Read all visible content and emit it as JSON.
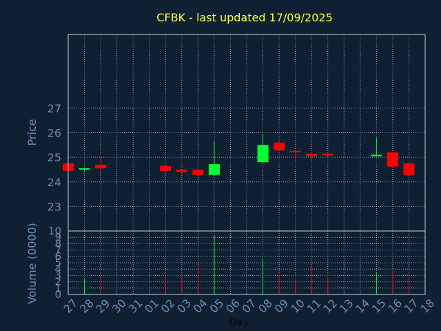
{
  "colors": {
    "background": "#0f2033",
    "plot_border": "#c9d1da",
    "grid": "#c9d1da",
    "title": "#ffff33",
    "tick_label": "#6b8fb3",
    "price_label": "#6b8fb3",
    "day_label": "#0a0a0a",
    "up": "#00ff33",
    "down": "#ff0000"
  },
  "chart_data": {
    "type": "candlestick",
    "title": "CFBK - last updated 17/09/2025",
    "xlabel": "Day",
    "price_panel": {
      "ylabel": "Price",
      "ylim": [
        22.0,
        30.0
      ],
      "yticks": [
        23,
        24,
        25,
        26,
        27
      ]
    },
    "volume_panel": {
      "ylabel": "Volume (0000)",
      "ylim": [
        0,
        10
      ],
      "yticks": [
        0,
        1,
        2,
        3,
        4,
        5,
        6,
        7,
        8,
        9,
        10
      ],
      "ytick_labels": [
        "0",
        "1",
        "2",
        "3",
        "4",
        "5",
        "6",
        "7",
        "8",
        "9",
        "10"
      ]
    },
    "x_tick_labels": [
      "27",
      "28",
      "29",
      "30",
      "31",
      "01",
      "02",
      "03",
      "04",
      "05",
      "06",
      "07",
      "08",
      "09",
      "10",
      "11",
      "12",
      "13",
      "14",
      "15",
      "16",
      "17",
      "18"
    ],
    "candles": [
      {
        "day": "27",
        "open": 24.75,
        "high": 24.75,
        "low": 24.45,
        "close": 24.45,
        "volume": 1.5
      },
      {
        "day": "28",
        "open": 24.5,
        "high": 24.55,
        "low": 24.45,
        "close": 24.55,
        "volume": 2.4
      },
      {
        "day": "29",
        "open": 24.7,
        "high": 25.05,
        "low": 24.35,
        "close": 24.55,
        "volume": 3.0
      },
      {
        "day": "02",
        "open": 24.65,
        "high": 24.7,
        "low": 24.4,
        "close": 24.45,
        "volume": 3.2
      },
      {
        "day": "03",
        "open": 24.5,
        "high": 24.5,
        "low": 24.35,
        "close": 24.4,
        "volume": 2.6
      },
      {
        "day": "04",
        "open": 24.5,
        "high": 24.5,
        "low": 24.28,
        "close": 24.28,
        "volume": 4.6
      },
      {
        "day": "05",
        "open": 24.28,
        "high": 25.65,
        "low": 24.28,
        "close": 24.72,
        "volume": 9.3
      },
      {
        "day": "08",
        "open": 24.8,
        "high": 25.95,
        "low": 24.8,
        "close": 25.5,
        "volume": 5.5
      },
      {
        "day": "09",
        "open": 25.6,
        "high": 25.7,
        "low": 25.28,
        "close": 25.28,
        "volume": 3.3
      },
      {
        "day": "10",
        "open": 25.25,
        "high": 25.25,
        "low": 24.85,
        "close": 25.22,
        "volume": 2.0
      },
      {
        "day": "11",
        "open": 25.15,
        "high": 25.2,
        "low": 24.85,
        "close": 25.05,
        "volume": 4.4
      },
      {
        "day": "12",
        "open": 25.15,
        "high": 25.15,
        "low": 25.05,
        "close": 25.08,
        "volume": 2.6
      },
      {
        "day": "15",
        "open": 25.05,
        "high": 25.8,
        "low": 25.05,
        "close": 25.1,
        "volume": 3.4
      },
      {
        "day": "16",
        "open": 25.2,
        "high": 25.2,
        "low": 24.62,
        "close": 24.62,
        "volume": 3.9
      },
      {
        "day": "17",
        "open": 24.75,
        "high": 24.75,
        "low": 24.28,
        "close": 24.28,
        "volume": 3.0
      }
    ]
  }
}
